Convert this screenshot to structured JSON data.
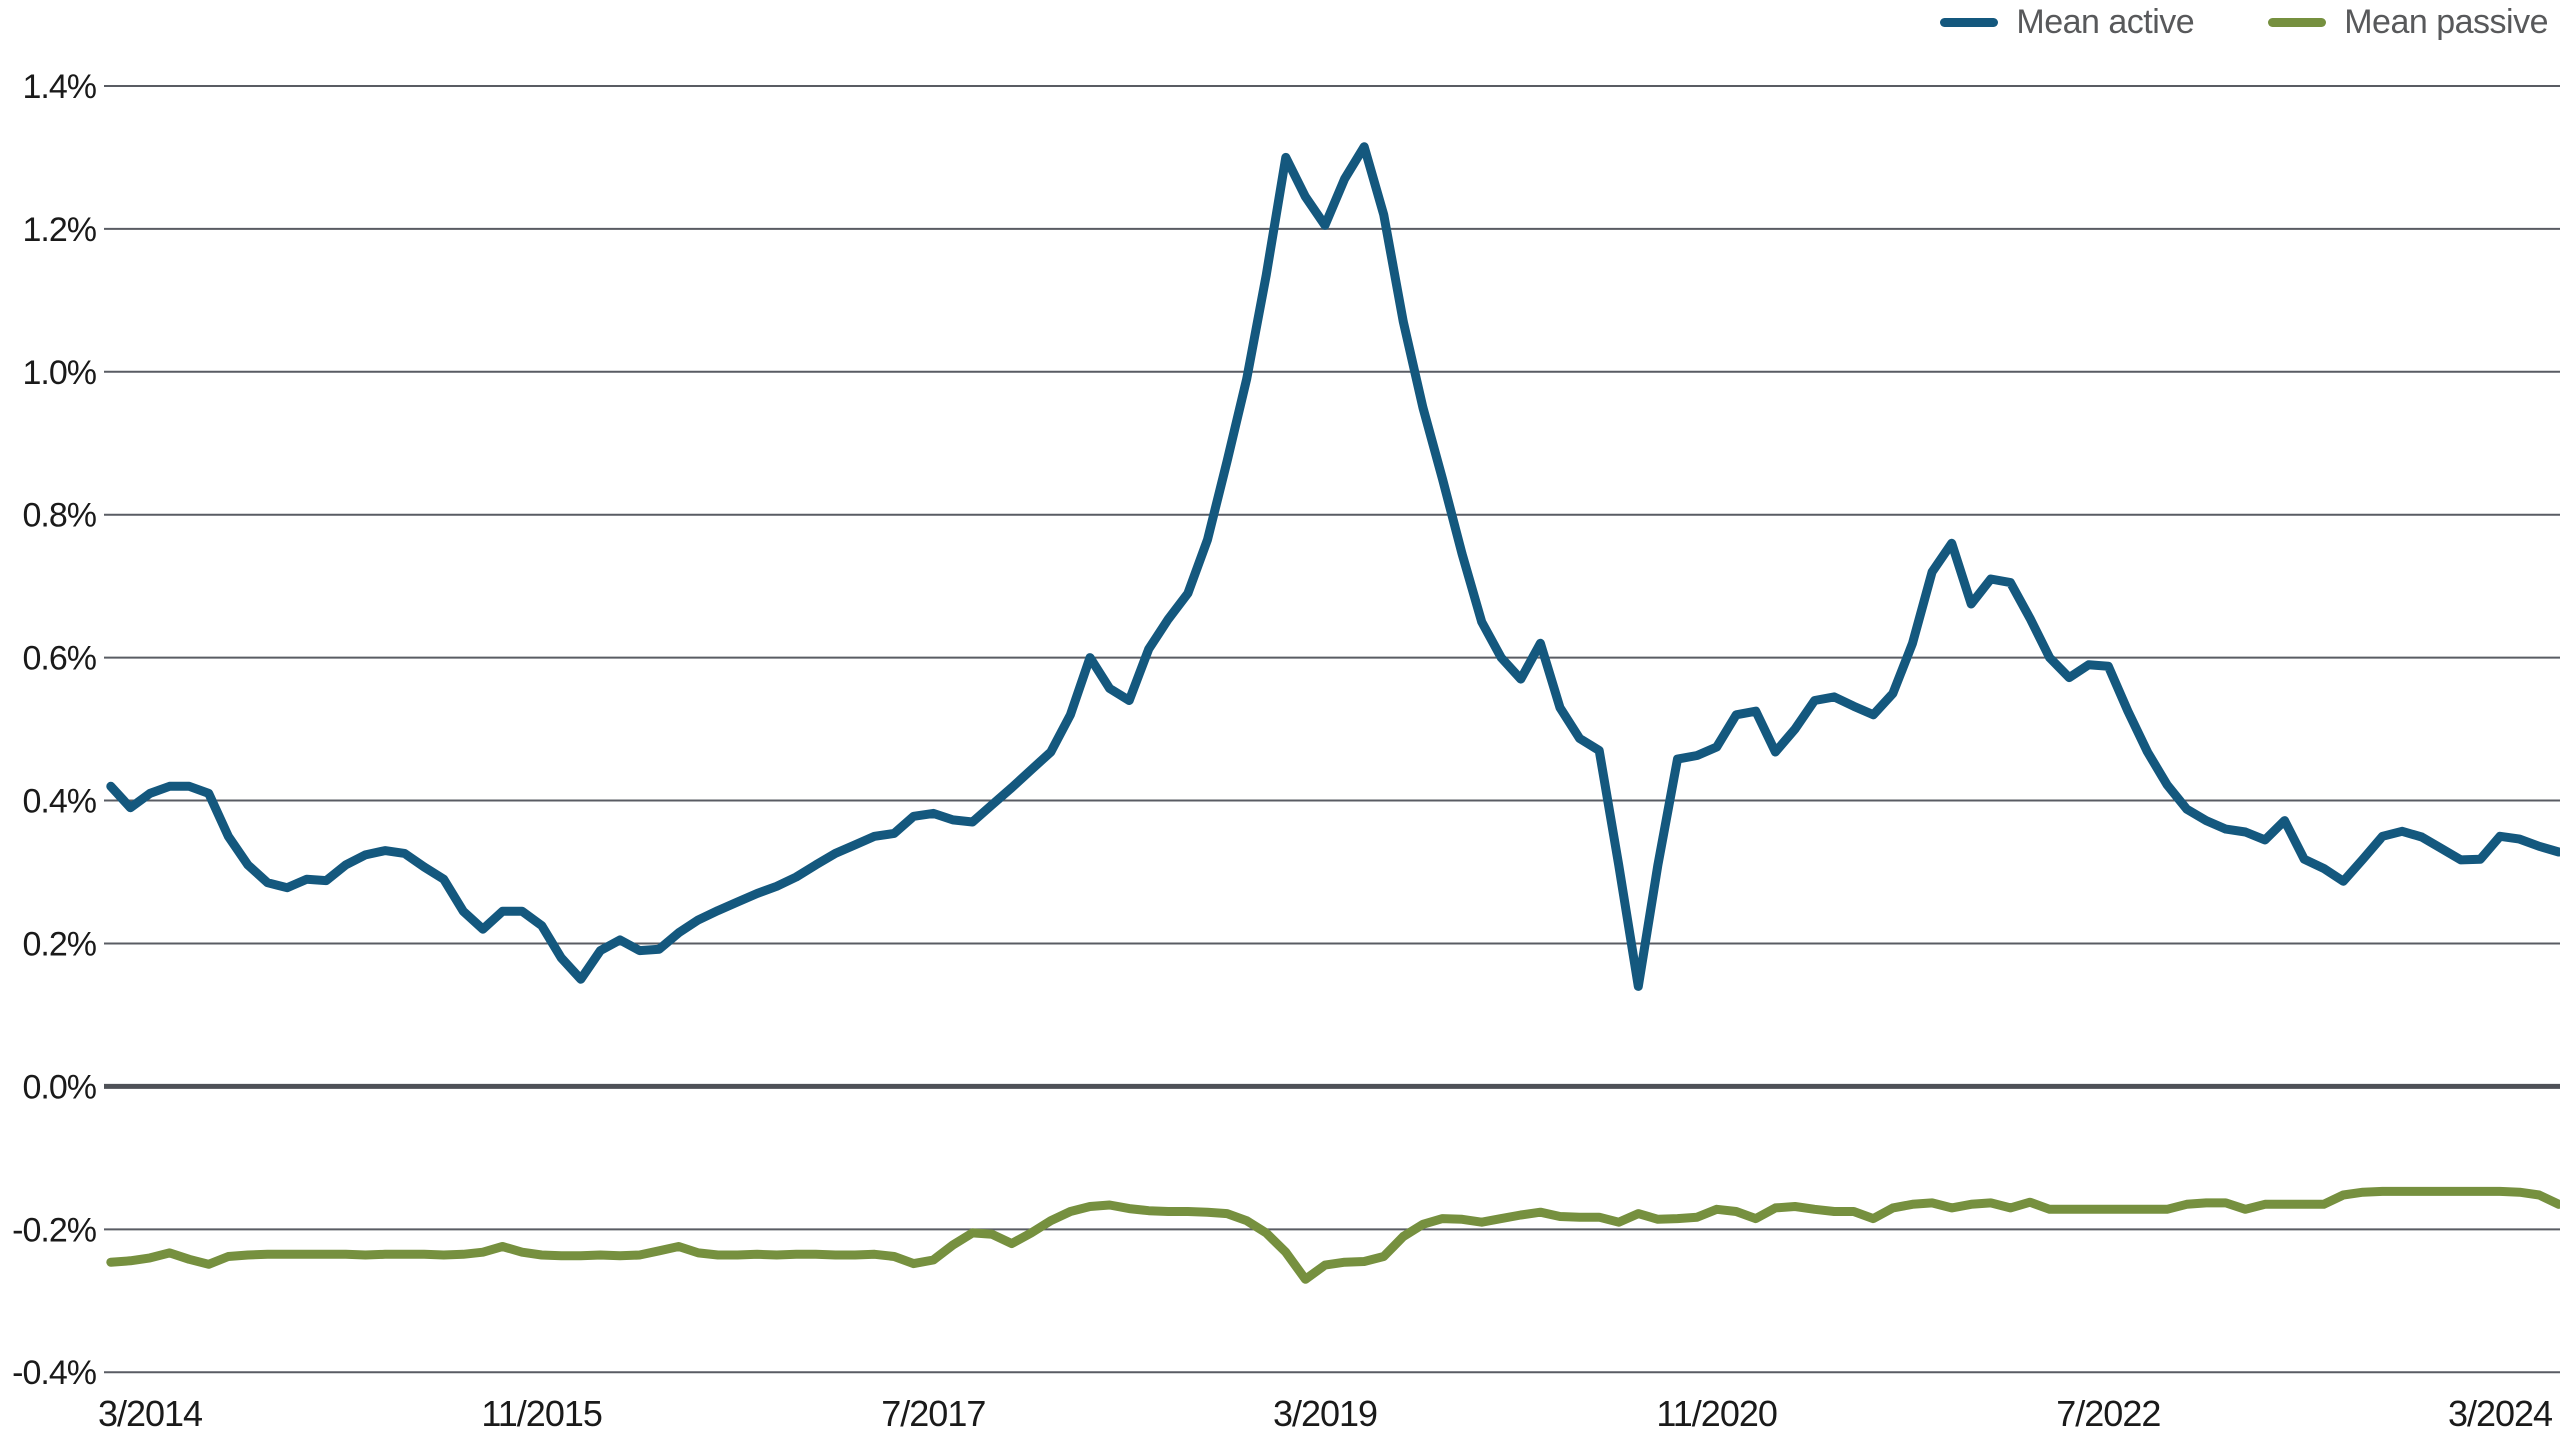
{
  "chart_data": {
    "type": "line",
    "title": "",
    "xlabel": "",
    "ylabel": "",
    "grid": true,
    "legend_position": "top-right",
    "x_unit": "month",
    "x_start": "1/2014",
    "x_end": "6/2024",
    "x_ticks": [
      {
        "label": "3/2014",
        "index": 2
      },
      {
        "label": "11/2015",
        "index": 22
      },
      {
        "label": "7/2017",
        "index": 42
      },
      {
        "label": "3/2019",
        "index": 62
      },
      {
        "label": "11/2020",
        "index": 82
      },
      {
        "label": "7/2022",
        "index": 102
      },
      {
        "label": "3/2024",
        "index": 122
      }
    ],
    "y_axis": {
      "min": -0.4,
      "max": 1.4,
      "step": 0.2,
      "unit": "%",
      "zero_line_emphasis": true,
      "ticks": [
        {
          "label": "1.4%",
          "value": 1.4
        },
        {
          "label": "1.2%",
          "value": 1.2
        },
        {
          "label": "1.0%",
          "value": 1.0
        },
        {
          "label": "0.8%",
          "value": 0.8
        },
        {
          "label": "0.6%",
          "value": 0.6
        },
        {
          "label": "0.4%",
          "value": 0.4
        },
        {
          "label": "0.2%",
          "value": 0.2
        },
        {
          "label": "0.0%",
          "value": 0.0
        },
        {
          "label": "-0.2%",
          "value": -0.2
        },
        {
          "label": "-0.4%",
          "value": -0.4
        }
      ]
    },
    "series": [
      {
        "name": "Mean active",
        "color": "#14587E",
        "values": [
          0.42,
          0.39,
          0.41,
          0.42,
          0.42,
          0.41,
          0.35,
          0.31,
          0.285,
          0.278,
          0.29,
          0.288,
          0.31,
          0.324,
          0.33,
          0.326,
          0.307,
          0.29,
          0.245,
          0.22,
          0.245,
          0.245,
          0.225,
          0.18,
          0.15,
          0.19,
          0.205,
          0.19,
          0.192,
          0.215,
          0.233,
          0.246,
          0.258,
          0.27,
          0.28,
          0.293,
          0.31,
          0.326,
          0.338,
          0.35,
          0.354,
          0.378,
          0.382,
          0.373,
          0.37,
          0.394,
          0.418,
          0.443,
          0.468,
          0.52,
          0.6,
          0.557,
          0.54,
          0.612,
          0.654,
          0.69,
          0.765,
          0.875,
          0.99,
          1.135,
          1.3,
          1.245,
          1.205,
          1.27,
          1.315,
          1.22,
          1.07,
          0.95,
          0.85,
          0.745,
          0.65,
          0.6,
          0.57,
          0.62,
          0.53,
          0.487,
          0.47,
          0.31,
          0.14,
          0.31,
          0.458,
          0.463,
          0.475,
          0.52,
          0.525,
          0.468,
          0.5,
          0.54,
          0.545,
          0.532,
          0.52,
          0.55,
          0.62,
          0.72,
          0.76,
          0.675,
          0.71,
          0.705,
          0.655,
          0.6,
          0.572,
          0.59,
          0.588,
          0.525,
          0.468,
          0.422,
          0.388,
          0.372,
          0.36,
          0.356,
          0.345,
          0.372,
          0.318,
          0.305,
          0.287,
          0.318,
          0.35,
          0.357,
          0.349,
          0.333,
          0.317,
          0.318,
          0.35,
          0.346,
          0.336,
          0.328
        ]
      },
      {
        "name": "Mean passive",
        "color": "#76903F",
        "values": [
          -0.246,
          -0.244,
          -0.24,
          -0.233,
          -0.242,
          -0.249,
          -0.238,
          -0.236,
          -0.235,
          -0.235,
          -0.235,
          -0.235,
          -0.235,
          -0.236,
          -0.235,
          -0.235,
          -0.235,
          -0.236,
          -0.235,
          -0.232,
          -0.224,
          -0.232,
          -0.236,
          -0.237,
          -0.237,
          -0.236,
          -0.237,
          -0.236,
          -0.23,
          -0.224,
          -0.233,
          -0.236,
          -0.236,
          -0.235,
          -0.236,
          -0.235,
          -0.235,
          -0.236,
          -0.236,
          -0.235,
          -0.238,
          -0.248,
          -0.243,
          -0.222,
          -0.205,
          -0.207,
          -0.22,
          -0.205,
          -0.188,
          -0.175,
          -0.168,
          -0.166,
          -0.171,
          -0.174,
          -0.175,
          -0.175,
          -0.176,
          -0.178,
          -0.188,
          -0.205,
          -0.232,
          -0.27,
          -0.25,
          -0.246,
          -0.245,
          -0.238,
          -0.21,
          -0.193,
          -0.185,
          -0.186,
          -0.19,
          -0.185,
          -0.18,
          -0.176,
          -0.182,
          -0.183,
          -0.183,
          -0.19,
          -0.178,
          -0.186,
          -0.185,
          -0.183,
          -0.172,
          -0.175,
          -0.185,
          -0.17,
          -0.168,
          -0.172,
          -0.175,
          -0.175,
          -0.185,
          -0.17,
          -0.165,
          -0.163,
          -0.17,
          -0.165,
          -0.163,
          -0.17,
          -0.162,
          -0.172,
          -0.172,
          -0.172,
          -0.172,
          -0.172,
          -0.172,
          -0.172,
          -0.165,
          -0.163,
          -0.163,
          -0.172,
          -0.165,
          -0.165,
          -0.165,
          -0.165,
          -0.152,
          -0.148,
          -0.147,
          -0.147,
          -0.147,
          -0.147,
          -0.147,
          -0.147,
          -0.147,
          -0.148,
          -0.152,
          -0.165
        ]
      }
    ]
  },
  "colors": {
    "background": "#ffffff",
    "gridline": "#595c63",
    "zero_line": "#4e5157",
    "axis_text": "#1a1a1a",
    "legend_text": "#58595b"
  }
}
